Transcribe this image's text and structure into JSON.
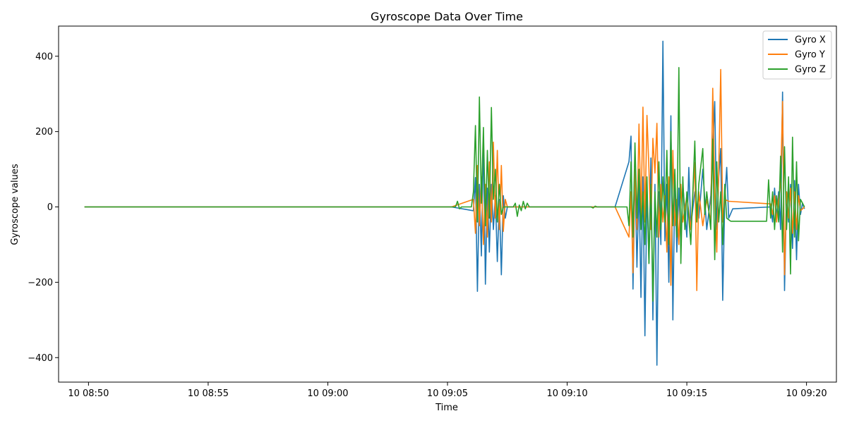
{
  "chart_data": {
    "type": "line",
    "title": "Gyroscope Data Over Time",
    "xlabel": "Time",
    "ylabel": "Gyroscope values",
    "x_axis": {
      "type": "time",
      "min": "08:48:45",
      "max": "09:21:15",
      "ticks": [
        "08:50",
        "08:55",
        "09:00",
        "09:05",
        "09:10",
        "09:15",
        "09:20"
      ],
      "tick_labels": [
        "10 08:50",
        "10 08:55",
        "10 09:00",
        "10 09:05",
        "10 09:10",
        "10 09:15",
        "10 09:20"
      ]
    },
    "y_axis": {
      "min": -465,
      "max": 480,
      "ticks": [
        -400,
        -200,
        0,
        200,
        400
      ],
      "tick_labels": [
        "−400",
        "−200",
        "0",
        "200",
        "400"
      ]
    },
    "grid": false,
    "legend_position": "top-right",
    "series": [
      {
        "name": "Gyro X",
        "color": "#1f77b4",
        "points": [
          [
            "08:49:50",
            0
          ],
          [
            "09:05:10",
            0
          ],
          [
            "09:06:05",
            -10
          ],
          [
            "09:06:10",
            78
          ],
          [
            "09:06:15",
            -224
          ],
          [
            "09:06:20",
            60
          ],
          [
            "09:06:25",
            -130
          ],
          [
            "09:06:30",
            185
          ],
          [
            "09:06:35",
            -205
          ],
          [
            "09:06:40",
            50
          ],
          [
            "09:06:45",
            -120
          ],
          [
            "09:06:50",
            60
          ],
          [
            "09:06:55",
            -60
          ],
          [
            "09:07:00",
            30
          ],
          [
            "09:07:05",
            -145
          ],
          [
            "09:07:10",
            20
          ],
          [
            "09:07:15",
            -180
          ],
          [
            "09:07:20",
            30
          ],
          [
            "09:07:25",
            -30
          ],
          [
            "09:07:30",
            0
          ],
          [
            "09:12:00",
            0
          ],
          [
            "09:12:35",
            120
          ],
          [
            "09:12:40",
            188
          ],
          [
            "09:12:45",
            -218
          ],
          [
            "09:12:50",
            100
          ],
          [
            "09:12:55",
            -160
          ],
          [
            "09:13:00",
            60
          ],
          [
            "09:13:05",
            -240
          ],
          [
            "09:13:10",
            80
          ],
          [
            "09:13:15",
            -342
          ],
          [
            "09:13:20",
            50
          ],
          [
            "09:13:25",
            -150
          ],
          [
            "09:13:30",
            130
          ],
          [
            "09:13:35",
            -300
          ],
          [
            "09:13:40",
            60
          ],
          [
            "09:13:45",
            -420
          ],
          [
            "09:13:50",
            40
          ],
          [
            "09:13:55",
            -100
          ],
          [
            "09:14:00",
            440
          ],
          [
            "09:14:05",
            -90
          ],
          [
            "09:14:10",
            60
          ],
          [
            "09:14:15",
            -200
          ],
          [
            "09:14:20",
            242
          ],
          [
            "09:14:25",
            -300
          ],
          [
            "09:14:30",
            80
          ],
          [
            "09:14:35",
            -120
          ],
          [
            "09:14:40",
            50
          ],
          [
            "09:14:45",
            -100
          ],
          [
            "09:14:50",
            60
          ],
          [
            "09:15:00",
            -80
          ],
          [
            "09:15:05",
            105
          ],
          [
            "09:15:10",
            -50
          ],
          [
            "09:15:20",
            40
          ],
          [
            "09:15:30",
            -30
          ],
          [
            "09:15:40",
            100
          ],
          [
            "09:15:50",
            -60
          ],
          [
            "09:16:00",
            30
          ],
          [
            "09:16:10",
            280
          ],
          [
            "09:16:15",
            -60
          ],
          [
            "09:16:20",
            80
          ],
          [
            "09:16:25",
            155
          ],
          [
            "09:16:30",
            -248
          ],
          [
            "09:16:35",
            20
          ],
          [
            "09:16:40",
            105
          ],
          [
            "09:16:45",
            -30
          ],
          [
            "09:16:55",
            -5
          ],
          [
            "09:18:30",
            0
          ],
          [
            "09:18:35",
            -40
          ],
          [
            "09:18:40",
            50
          ],
          [
            "09:18:45",
            -30
          ],
          [
            "09:18:50",
            40
          ],
          [
            "09:18:55",
            -60
          ],
          [
            "09:19:00",
            305
          ],
          [
            "09:19:05",
            -222
          ],
          [
            "09:19:10",
            40
          ],
          [
            "09:19:15",
            -40
          ],
          [
            "09:19:20",
            60
          ],
          [
            "09:19:25",
            -110
          ],
          [
            "09:19:30",
            70
          ],
          [
            "09:19:35",
            -140
          ],
          [
            "09:19:40",
            60
          ],
          [
            "09:19:45",
            -20
          ],
          [
            "09:19:50",
            10
          ],
          [
            "09:19:55",
            -5
          ]
        ]
      },
      {
        "name": "Gyro Y",
        "color": "#ff7f0e",
        "points": [
          [
            "08:49:50",
            0
          ],
          [
            "09:05:10",
            0
          ],
          [
            "09:06:05",
            20
          ],
          [
            "09:06:10",
            -70
          ],
          [
            "09:06:15",
            110
          ],
          [
            "09:06:20",
            -50
          ],
          [
            "09:06:25",
            80
          ],
          [
            "09:06:30",
            -100
          ],
          [
            "09:06:35",
            60
          ],
          [
            "09:06:40",
            -80
          ],
          [
            "09:06:45",
            120
          ],
          [
            "09:06:50",
            -40
          ],
          [
            "09:06:55",
            172
          ],
          [
            "09:07:00",
            -30
          ],
          [
            "09:07:05",
            150
          ],
          [
            "09:07:10",
            -60
          ],
          [
            "09:07:15",
            110
          ],
          [
            "09:07:20",
            -65
          ],
          [
            "09:07:25",
            20
          ],
          [
            "09:07:30",
            0
          ],
          [
            "09:12:00",
            0
          ],
          [
            "09:12:35",
            -80
          ],
          [
            "09:12:40",
            40
          ],
          [
            "09:12:45",
            -175
          ],
          [
            "09:12:50",
            100
          ],
          [
            "09:12:55",
            -60
          ],
          [
            "09:13:00",
            220
          ],
          [
            "09:13:05",
            -30
          ],
          [
            "09:13:10",
            265
          ],
          [
            "09:13:15",
            -40
          ],
          [
            "09:13:20",
            243
          ],
          [
            "09:13:25",
            100
          ],
          [
            "09:13:30",
            -60
          ],
          [
            "09:13:35",
            182
          ],
          [
            "09:13:40",
            90
          ],
          [
            "09:13:45",
            222
          ],
          [
            "09:13:50",
            -80
          ],
          [
            "09:13:55",
            60
          ],
          [
            "09:14:00",
            -40
          ],
          [
            "09:14:05",
            30
          ],
          [
            "09:14:10",
            -120
          ],
          [
            "09:14:15",
            80
          ],
          [
            "09:14:20",
            -208
          ],
          [
            "09:14:25",
            150
          ],
          [
            "09:14:30",
            -50
          ],
          [
            "09:14:35",
            20
          ],
          [
            "09:14:40",
            -100
          ],
          [
            "09:14:45",
            60
          ],
          [
            "09:14:50",
            -40
          ],
          [
            "09:15:00",
            30
          ],
          [
            "09:15:10",
            -60
          ],
          [
            "09:15:20",
            118
          ],
          [
            "09:15:25",
            -222
          ],
          [
            "09:15:30",
            40
          ],
          [
            "09:15:40",
            -50
          ],
          [
            "09:15:50",
            20
          ],
          [
            "09:16:00",
            -40
          ],
          [
            "09:16:05",
            315
          ],
          [
            "09:16:10",
            40
          ],
          [
            "09:16:15",
            -120
          ],
          [
            "09:16:20",
            100
          ],
          [
            "09:16:25",
            365
          ],
          [
            "09:16:30",
            -40
          ],
          [
            "09:16:35",
            20
          ],
          [
            "09:16:45",
            15
          ],
          [
            "09:18:30",
            8
          ],
          [
            "09:18:35",
            -20
          ],
          [
            "09:18:40",
            30
          ],
          [
            "09:18:45",
            -40
          ],
          [
            "09:18:50",
            20
          ],
          [
            "09:18:55",
            60
          ],
          [
            "09:19:00",
            280
          ],
          [
            "09:19:05",
            -180
          ],
          [
            "09:19:10",
            40
          ],
          [
            "09:19:15",
            -30
          ],
          [
            "09:19:20",
            50
          ],
          [
            "09:19:25",
            -70
          ],
          [
            "09:19:30",
            40
          ],
          [
            "09:19:35",
            -60
          ],
          [
            "09:19:40",
            30
          ],
          [
            "09:19:45",
            -10
          ],
          [
            "09:19:55",
            0
          ]
        ]
      },
      {
        "name": "Gyro Z",
        "color": "#2ca02c",
        "points": [
          [
            "08:49:50",
            0
          ],
          [
            "09:05:20",
            0
          ],
          [
            "09:05:25",
            15
          ],
          [
            "09:05:30",
            -5
          ],
          [
            "09:05:35",
            0
          ],
          [
            "09:06:00",
            0
          ],
          [
            "09:06:05",
            40
          ],
          [
            "09:06:10",
            216
          ],
          [
            "09:06:15",
            -40
          ],
          [
            "09:06:20",
            292
          ],
          [
            "09:06:25",
            10
          ],
          [
            "09:06:30",
            211
          ],
          [
            "09:06:35",
            -50
          ],
          [
            "09:06:40",
            150
          ],
          [
            "09:06:45",
            -30
          ],
          [
            "09:06:50",
            264
          ],
          [
            "09:06:55",
            20
          ],
          [
            "09:07:00",
            100
          ],
          [
            "09:07:05",
            -40
          ],
          [
            "09:07:10",
            60
          ],
          [
            "09:07:15",
            -20
          ],
          [
            "09:07:20",
            0
          ],
          [
            "09:07:45",
            0
          ],
          [
            "09:07:50",
            10
          ],
          [
            "09:07:55",
            -25
          ],
          [
            "09:08:00",
            5
          ],
          [
            "09:08:05",
            -10
          ],
          [
            "09:08:10",
            15
          ],
          [
            "09:08:15",
            -5
          ],
          [
            "09:08:20",
            10
          ],
          [
            "09:08:25",
            0
          ],
          [
            "09:11:00",
            0
          ],
          [
            "09:11:05",
            -3
          ],
          [
            "09:11:10",
            2
          ],
          [
            "09:11:15",
            0
          ],
          [
            "09:12:30",
            0
          ],
          [
            "09:12:35",
            -50
          ],
          [
            "09:12:40",
            120
          ],
          [
            "09:12:45",
            -80
          ],
          [
            "09:12:50",
            170
          ],
          [
            "09:12:55",
            -30
          ],
          [
            "09:13:00",
            100
          ],
          [
            "09:13:05",
            -60
          ],
          [
            "09:13:10",
            40
          ],
          [
            "09:13:15",
            -100
          ],
          [
            "09:13:20",
            80
          ],
          [
            "09:13:25",
            -150
          ],
          [
            "09:13:30",
            60
          ],
          [
            "09:13:35",
            -250
          ],
          [
            "09:13:40",
            40
          ],
          [
            "09:13:45",
            -80
          ],
          [
            "09:13:50",
            120
          ],
          [
            "09:13:55",
            -60
          ],
          [
            "09:14:00",
            80
          ],
          [
            "09:14:05",
            -40
          ],
          [
            "09:14:10",
            150
          ],
          [
            "09:14:15",
            -100
          ],
          [
            "09:14:20",
            200
          ],
          [
            "09:14:25",
            -50
          ],
          [
            "09:14:30",
            100
          ],
          [
            "09:14:35",
            -80
          ],
          [
            "09:14:40",
            370
          ],
          [
            "09:14:45",
            -150
          ],
          [
            "09:14:50",
            80
          ],
          [
            "09:14:55",
            -60
          ],
          [
            "09:15:00",
            40
          ],
          [
            "09:15:10",
            -100
          ],
          [
            "09:15:20",
            175
          ],
          [
            "09:15:25",
            -40
          ],
          [
            "09:15:30",
            60
          ],
          [
            "09:15:40",
            155
          ],
          [
            "09:15:45",
            -20
          ],
          [
            "09:15:50",
            40
          ],
          [
            "09:16:00",
            -60
          ],
          [
            "09:16:05",
            180
          ],
          [
            "09:16:10",
            -140
          ],
          [
            "09:16:15",
            120
          ],
          [
            "09:16:20",
            -40
          ],
          [
            "09:16:25",
            40
          ],
          [
            "09:16:30",
            -100
          ],
          [
            "09:16:35",
            60
          ],
          [
            "09:16:40",
            -30
          ],
          [
            "09:16:50",
            -38
          ],
          [
            "09:18:20",
            -38
          ],
          [
            "09:18:25",
            72
          ],
          [
            "09:18:30",
            -30
          ],
          [
            "09:18:35",
            40
          ],
          [
            "09:18:40",
            -60
          ],
          [
            "09:18:45",
            30
          ],
          [
            "09:18:50",
            -40
          ],
          [
            "09:18:55",
            135
          ],
          [
            "09:19:00",
            -120
          ],
          [
            "09:19:05",
            160
          ],
          [
            "09:19:10",
            -60
          ],
          [
            "09:19:15",
            80
          ],
          [
            "09:19:20",
            -178
          ],
          [
            "09:19:25",
            185
          ],
          [
            "09:19:30",
            -80
          ],
          [
            "09:19:35",
            120
          ],
          [
            "09:19:40",
            -90
          ],
          [
            "09:19:45",
            20
          ],
          [
            "09:19:55",
            0
          ]
        ]
      }
    ]
  }
}
